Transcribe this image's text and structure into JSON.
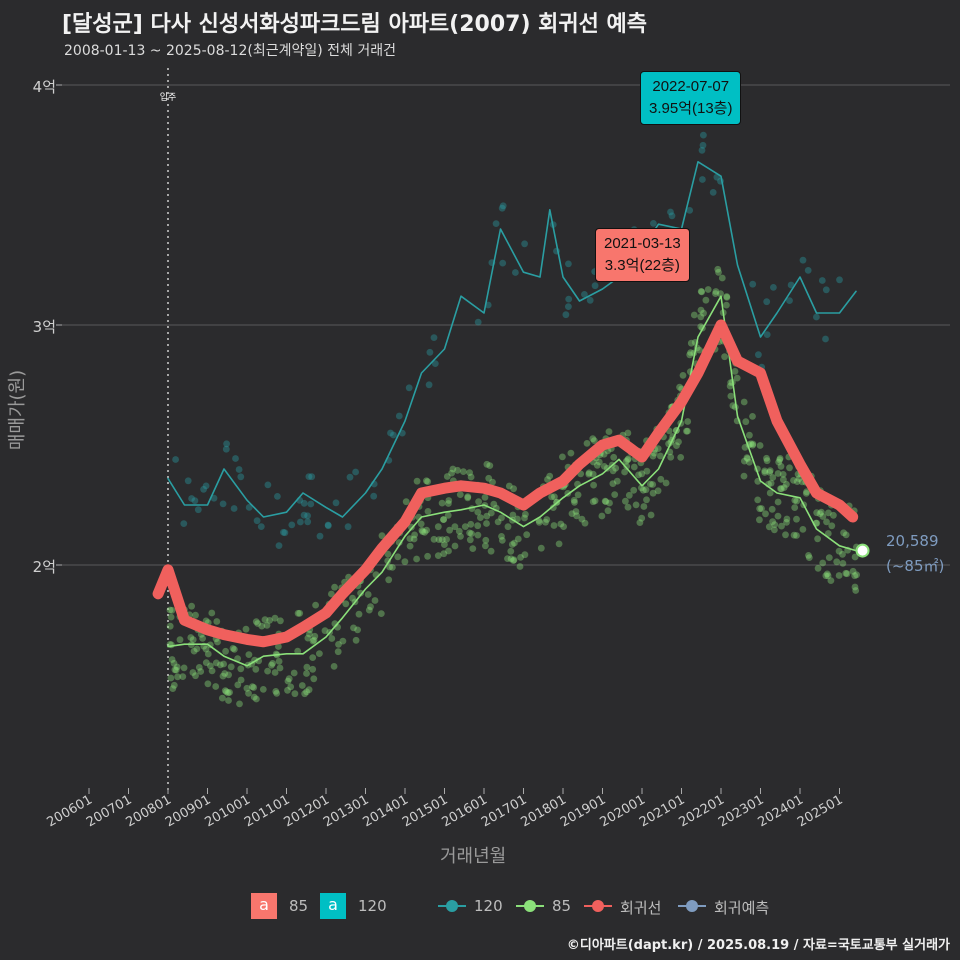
{
  "header": {
    "title": "[달성군] 다사 신성서화성파크드림 아파트(2007) 회귀선 예측",
    "subtitle": "2008-01-13 ~ 2025-08-12(최근계약일) 전체 거래건"
  },
  "axes": {
    "ylabel": "매매가(원)",
    "xlabel": "거래년월",
    "yticks": [
      "2억",
      "3억",
      "4억"
    ],
    "xticks": [
      "200601",
      "200701",
      "200801",
      "200901",
      "201001",
      "201101",
      "201201",
      "201301",
      "201401",
      "201501",
      "201601",
      "201701",
      "201801",
      "201901",
      "202001",
      "202101",
      "202201",
      "202301",
      "202401",
      "202501"
    ]
  },
  "annotations": {
    "move_in": "입주",
    "red": {
      "date": "2021-03-13",
      "value": "3.3억(22층)"
    },
    "cyan": {
      "date": "2022-07-07",
      "value": "3.95억(13층)"
    },
    "pred_count": "20,589",
    "pred_area": "(~85㎡)"
  },
  "legend": {
    "box85": "a",
    "box85_label": "85",
    "box120": "a",
    "box120_label": "120",
    "line120": "120",
    "line85": "85",
    "line_reg": "회귀선",
    "line_pred": "회귀예측"
  },
  "credit": "©디아파트(dapt.kr) / 2025.08.19 / 자료=국토교통부 실거래가",
  "colors": {
    "series120": "#2a9ea2",
    "series85": "#8be07a",
    "regression": "#f0605d",
    "prediction": "#7f9cc0",
    "red_box": "#f8766d",
    "cyan_box": "#00bfc4",
    "grid": "#5a5a5a"
  },
  "chart_data": {
    "type": "line",
    "title": "[달성군] 다사 신성서화성파크드림 아파트(2007) 회귀선 예측",
    "xlabel": "거래년월",
    "ylabel": "매매가(원)",
    "y_unit": "억",
    "ylim": [
      1.1,
      4.1
    ],
    "xlim": [
      "2006-01",
      "2025-12"
    ],
    "move_in": "2008-01",
    "series": [
      {
        "name": "120",
        "x": [
          "2008-01",
          "2008-06",
          "2009-01",
          "2009-06",
          "2010-01",
          "2010-06",
          "2011-01",
          "2011-06",
          "2012-01",
          "2012-06",
          "2013-01",
          "2013-06",
          "2014-01",
          "2014-06",
          "2015-01",
          "2015-06",
          "2016-01",
          "2016-06",
          "2017-01",
          "2017-06",
          "2017-09",
          "2018-01",
          "2018-06",
          "2019-01",
          "2019-06",
          "2020-01",
          "2020-06",
          "2021-01",
          "2021-06",
          "2022-01",
          "2022-06",
          "2023-01",
          "2023-06",
          "2024-01",
          "2024-06",
          "2025-01",
          "2025-06"
        ],
        "values": [
          2.36,
          2.25,
          2.25,
          2.4,
          2.27,
          2.2,
          2.22,
          2.3,
          2.24,
          2.2,
          2.3,
          2.4,
          2.6,
          2.8,
          2.9,
          3.12,
          3.05,
          3.4,
          3.22,
          3.2,
          3.48,
          3.2,
          3.1,
          3.15,
          3.2,
          3.32,
          3.42,
          3.4,
          3.68,
          3.62,
          3.25,
          2.95,
          3.05,
          3.2,
          3.05,
          3.05,
          3.14
        ]
      },
      {
        "name": "85",
        "x": [
          "2008-01",
          "2008-06",
          "2009-01",
          "2009-06",
          "2010-01",
          "2010-06",
          "2011-01",
          "2011-06",
          "2012-01",
          "2012-06",
          "2013-01",
          "2013-06",
          "2014-01",
          "2014-06",
          "2015-01",
          "2015-06",
          "2016-01",
          "2016-06",
          "2017-01",
          "2017-06",
          "2018-01",
          "2018-06",
          "2019-01",
          "2019-06",
          "2020-01",
          "2020-06",
          "2021-01",
          "2021-06",
          "2022-01",
          "2022-06",
          "2023-01",
          "2023-06",
          "2024-01",
          "2024-06",
          "2025-01",
          "2025-06"
        ],
        "values": [
          1.66,
          1.67,
          1.67,
          1.62,
          1.58,
          1.62,
          1.63,
          1.63,
          1.7,
          1.78,
          1.9,
          1.97,
          2.12,
          2.2,
          2.22,
          2.23,
          2.25,
          2.22,
          2.16,
          2.2,
          2.28,
          2.33,
          2.38,
          2.44,
          2.33,
          2.4,
          2.6,
          2.95,
          3.12,
          2.62,
          2.35,
          2.3,
          2.28,
          2.15,
          2.08,
          2.06
        ]
      },
      {
        "name": "회귀선",
        "x": [
          "2007-10",
          "2008-01",
          "2008-06",
          "2009-01",
          "2009-06",
          "2010-01",
          "2010-06",
          "2011-01",
          "2011-06",
          "2012-01",
          "2012-06",
          "2013-01",
          "2013-06",
          "2014-01",
          "2014-06",
          "2015-01",
          "2015-06",
          "2016-01",
          "2016-06",
          "2017-01",
          "2017-06",
          "2018-01",
          "2018-06",
          "2019-01",
          "2019-06",
          "2020-01",
          "2020-06",
          "2021-01",
          "2021-06",
          "2022-01",
          "2022-06",
          "2023-01",
          "2023-06",
          "2024-01",
          "2024-06",
          "2025-01",
          "2025-05"
        ],
        "values": [
          1.88,
          1.98,
          1.77,
          1.73,
          1.71,
          1.69,
          1.68,
          1.7,
          1.74,
          1.8,
          1.88,
          1.98,
          2.07,
          2.18,
          2.3,
          2.32,
          2.33,
          2.32,
          2.3,
          2.25,
          2.3,
          2.35,
          2.42,
          2.5,
          2.52,
          2.45,
          2.55,
          2.68,
          2.8,
          3.0,
          2.85,
          2.8,
          2.6,
          2.42,
          2.3,
          2.25,
          2.2
        ]
      },
      {
        "name": "회귀예측",
        "x": [
          "2025-08"
        ],
        "values": [
          2.06
        ]
      }
    ],
    "highlights": [
      {
        "label": "2021-03-13",
        "value": 3.3,
        "floor": "22층"
      },
      {
        "label": "2022-07-07",
        "value": 3.95,
        "floor": "13층"
      }
    ],
    "legend": [
      "85",
      "120",
      "120",
      "85",
      "회귀선",
      "회귀예측"
    ],
    "legend_position": "bottom",
    "grid": true
  }
}
